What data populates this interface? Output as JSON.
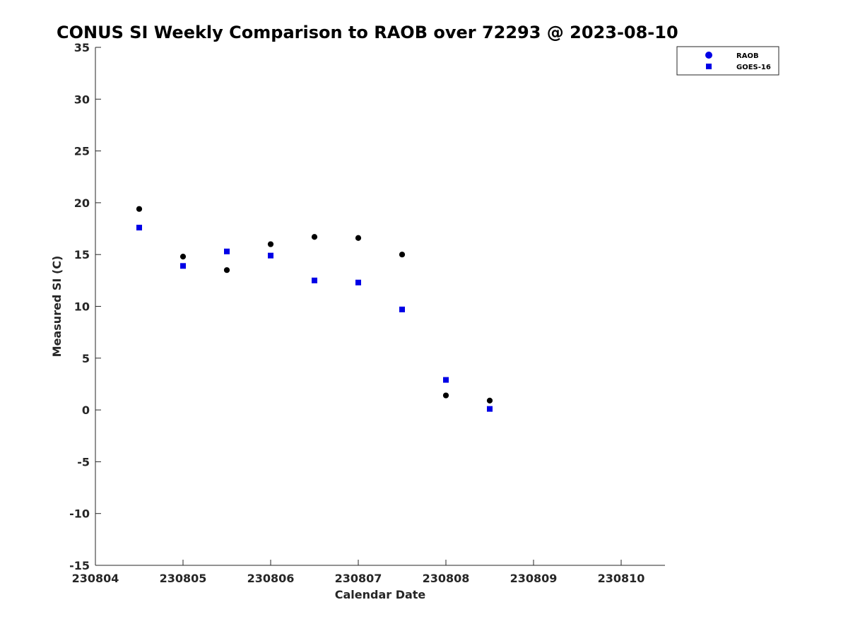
{
  "chart_data": {
    "type": "scatter",
    "title": "CONUS SI Weekly Comparison to RAOB over 72293 @ 2023-08-10",
    "xlabel": "Calendar Date",
    "ylabel": "Measured SI (C)",
    "xlim": [
      0,
      6.5
    ],
    "ylim": [
      -15,
      35
    ],
    "x_ticks": [
      {
        "value": 0,
        "label": "230804"
      },
      {
        "value": 1,
        "label": "230805"
      },
      {
        "value": 2,
        "label": "230806"
      },
      {
        "value": 3,
        "label": "230807"
      },
      {
        "value": 4,
        "label": "230808"
      },
      {
        "value": 5,
        "label": "230809"
      },
      {
        "value": 6,
        "label": "230810"
      }
    ],
    "y_ticks": [
      {
        "value": 35,
        "label": "35"
      },
      {
        "value": 30,
        "label": "30"
      },
      {
        "value": 25,
        "label": "25"
      },
      {
        "value": 20,
        "label": "20"
      },
      {
        "value": 15,
        "label": "15"
      },
      {
        "value": 10,
        "label": "10"
      },
      {
        "value": 5,
        "label": "5"
      },
      {
        "value": 0,
        "label": "0"
      },
      {
        "value": -5,
        "label": "-5"
      },
      {
        "value": -10,
        "label": "-10"
      },
      {
        "value": -15,
        "label": "-15"
      }
    ],
    "grid": false,
    "legend_position": "top-right outside",
    "series": [
      {
        "name": "RAOB",
        "marker": "circle",
        "color": "#000000",
        "legend_color": "#0000e6",
        "points": [
          {
            "x": 0.5,
            "y": 19.4
          },
          {
            "x": 1.0,
            "y": 14.8
          },
          {
            "x": 1.5,
            "y": 13.5
          },
          {
            "x": 2.0,
            "y": 16.0
          },
          {
            "x": 2.5,
            "y": 16.7
          },
          {
            "x": 3.0,
            "y": 16.6
          },
          {
            "x": 3.5,
            "y": 15.0
          },
          {
            "x": 4.0,
            "y": 1.4
          },
          {
            "x": 4.5,
            "y": 0.9
          }
        ]
      },
      {
        "name": "GOES-16",
        "marker": "square",
        "color": "#0000e6",
        "legend_color": "#0000e6",
        "points": [
          {
            "x": 0.5,
            "y": 17.6
          },
          {
            "x": 1.0,
            "y": 13.9
          },
          {
            "x": 1.5,
            "y": 15.3
          },
          {
            "x": 2.0,
            "y": 14.9
          },
          {
            "x": 2.5,
            "y": 12.5
          },
          {
            "x": 3.0,
            "y": 12.3
          },
          {
            "x": 3.5,
            "y": 9.7
          },
          {
            "x": 4.0,
            "y": 2.9
          },
          {
            "x": 4.5,
            "y": 0.1
          }
        ]
      }
    ]
  }
}
